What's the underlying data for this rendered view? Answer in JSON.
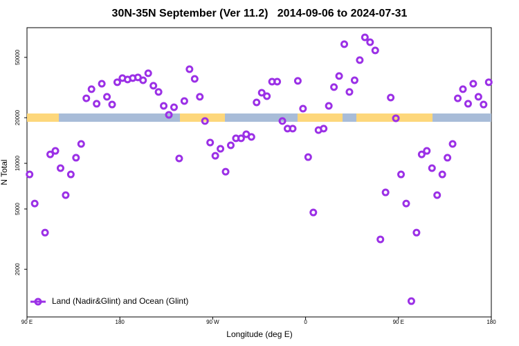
{
  "chart_data": {
    "type": "scatter",
    "title": "30N-35N September (Ver 11.2)   2014-09-06 to 2024-07-31",
    "xlabel": "Longitude (deg E)",
    "ylabel": "N Total",
    "xlim": [
      90,
      540
    ],
    "xticks": [
      {
        "value": 90,
        "label": "90 E"
      },
      {
        "value": 180,
        "label": "180"
      },
      {
        "value": 270,
        "label": "90 W"
      },
      {
        "value": 360,
        "label": "0"
      },
      {
        "value": 450,
        "label": "90 E"
      },
      {
        "value": 540,
        "label": "180"
      }
    ],
    "ylim": [
      970,
      78500
    ],
    "log_y": true,
    "yticks": [
      2000,
      5000,
      10000,
      20000,
      50000
    ],
    "legend": "lower left",
    "series": [
      {
        "name": "Land (Nadir&Glint) and Ocean (Glint)",
        "color": "#9b30e6",
        "x": [
          92.5,
          97.5,
          107.5,
          112.5,
          117.5,
          122.5,
          127.5,
          132.5,
          137.5,
          142.5,
          147.5,
          152.5,
          157.5,
          162.5,
          167.5,
          172.5,
          177.5,
          182.5,
          187.5,
          192.5,
          197.5,
          202.5,
          207.5,
          212.5,
          217.5,
          222.5,
          227.5,
          232.5,
          237.5,
          242.5,
          247.5,
          252.5,
          257.5,
          262.5,
          267.5,
          272.5,
          277.5,
          282.5,
          287.5,
          292.5,
          297.5,
          302.5,
          307.5,
          312.5,
          317.5,
          322.5,
          327.5,
          332.5,
          337.5,
          342.5,
          347.5,
          352.5,
          357.5,
          362.5,
          367.5,
          372.5,
          377.5,
          382.5,
          387.5,
          392.5,
          397.5,
          402.5,
          407.5,
          412.5,
          417.5,
          422.5,
          427.5,
          432.5,
          437.5,
          442.5,
          447.5,
          452.5,
          457.5,
          462.5,
          467.5,
          472.5,
          477.5,
          482.5,
          487.5,
          492.5,
          497.5,
          502.5,
          507.5,
          512.5,
          517.5,
          522.5,
          527.5,
          532.5,
          537.5
        ],
        "values": [
          8450,
          5430,
          3490,
          11450,
          12080,
          9290,
          6170,
          8450,
          10890,
          13430,
          26850,
          30830,
          24720,
          33500,
          27480,
          24430,
          34280,
          36480,
          35730,
          36480,
          36900,
          35320,
          39260,
          32510,
          29580,
          23930,
          20890,
          23440,
          10770,
          25760,
          41780,
          36060,
          27480,
          19010,
          13710,
          11220,
          12470,
          8810,
          13150,
          14620,
          14620,
          15560,
          14930,
          25230,
          29240,
          27730,
          34590,
          34590,
          19010,
          16940,
          16940,
          34990,
          22960,
          10990,
          4740,
          16560,
          16940,
          23930,
          31840,
          37670,
          61090,
          29580,
          35320,
          47970,
          67760,
          62950,
          55590,
          3150,
          6430,
          27160,
          19820,
          8450,
          5430,
          1233,
          3490,
          11450,
          12080,
          9290,
          6170,
          8450,
          10890,
          13430,
          26850,
          30830,
          24720,
          33500,
          27480,
          24430,
          34280
        ]
      }
    ]
  }
}
